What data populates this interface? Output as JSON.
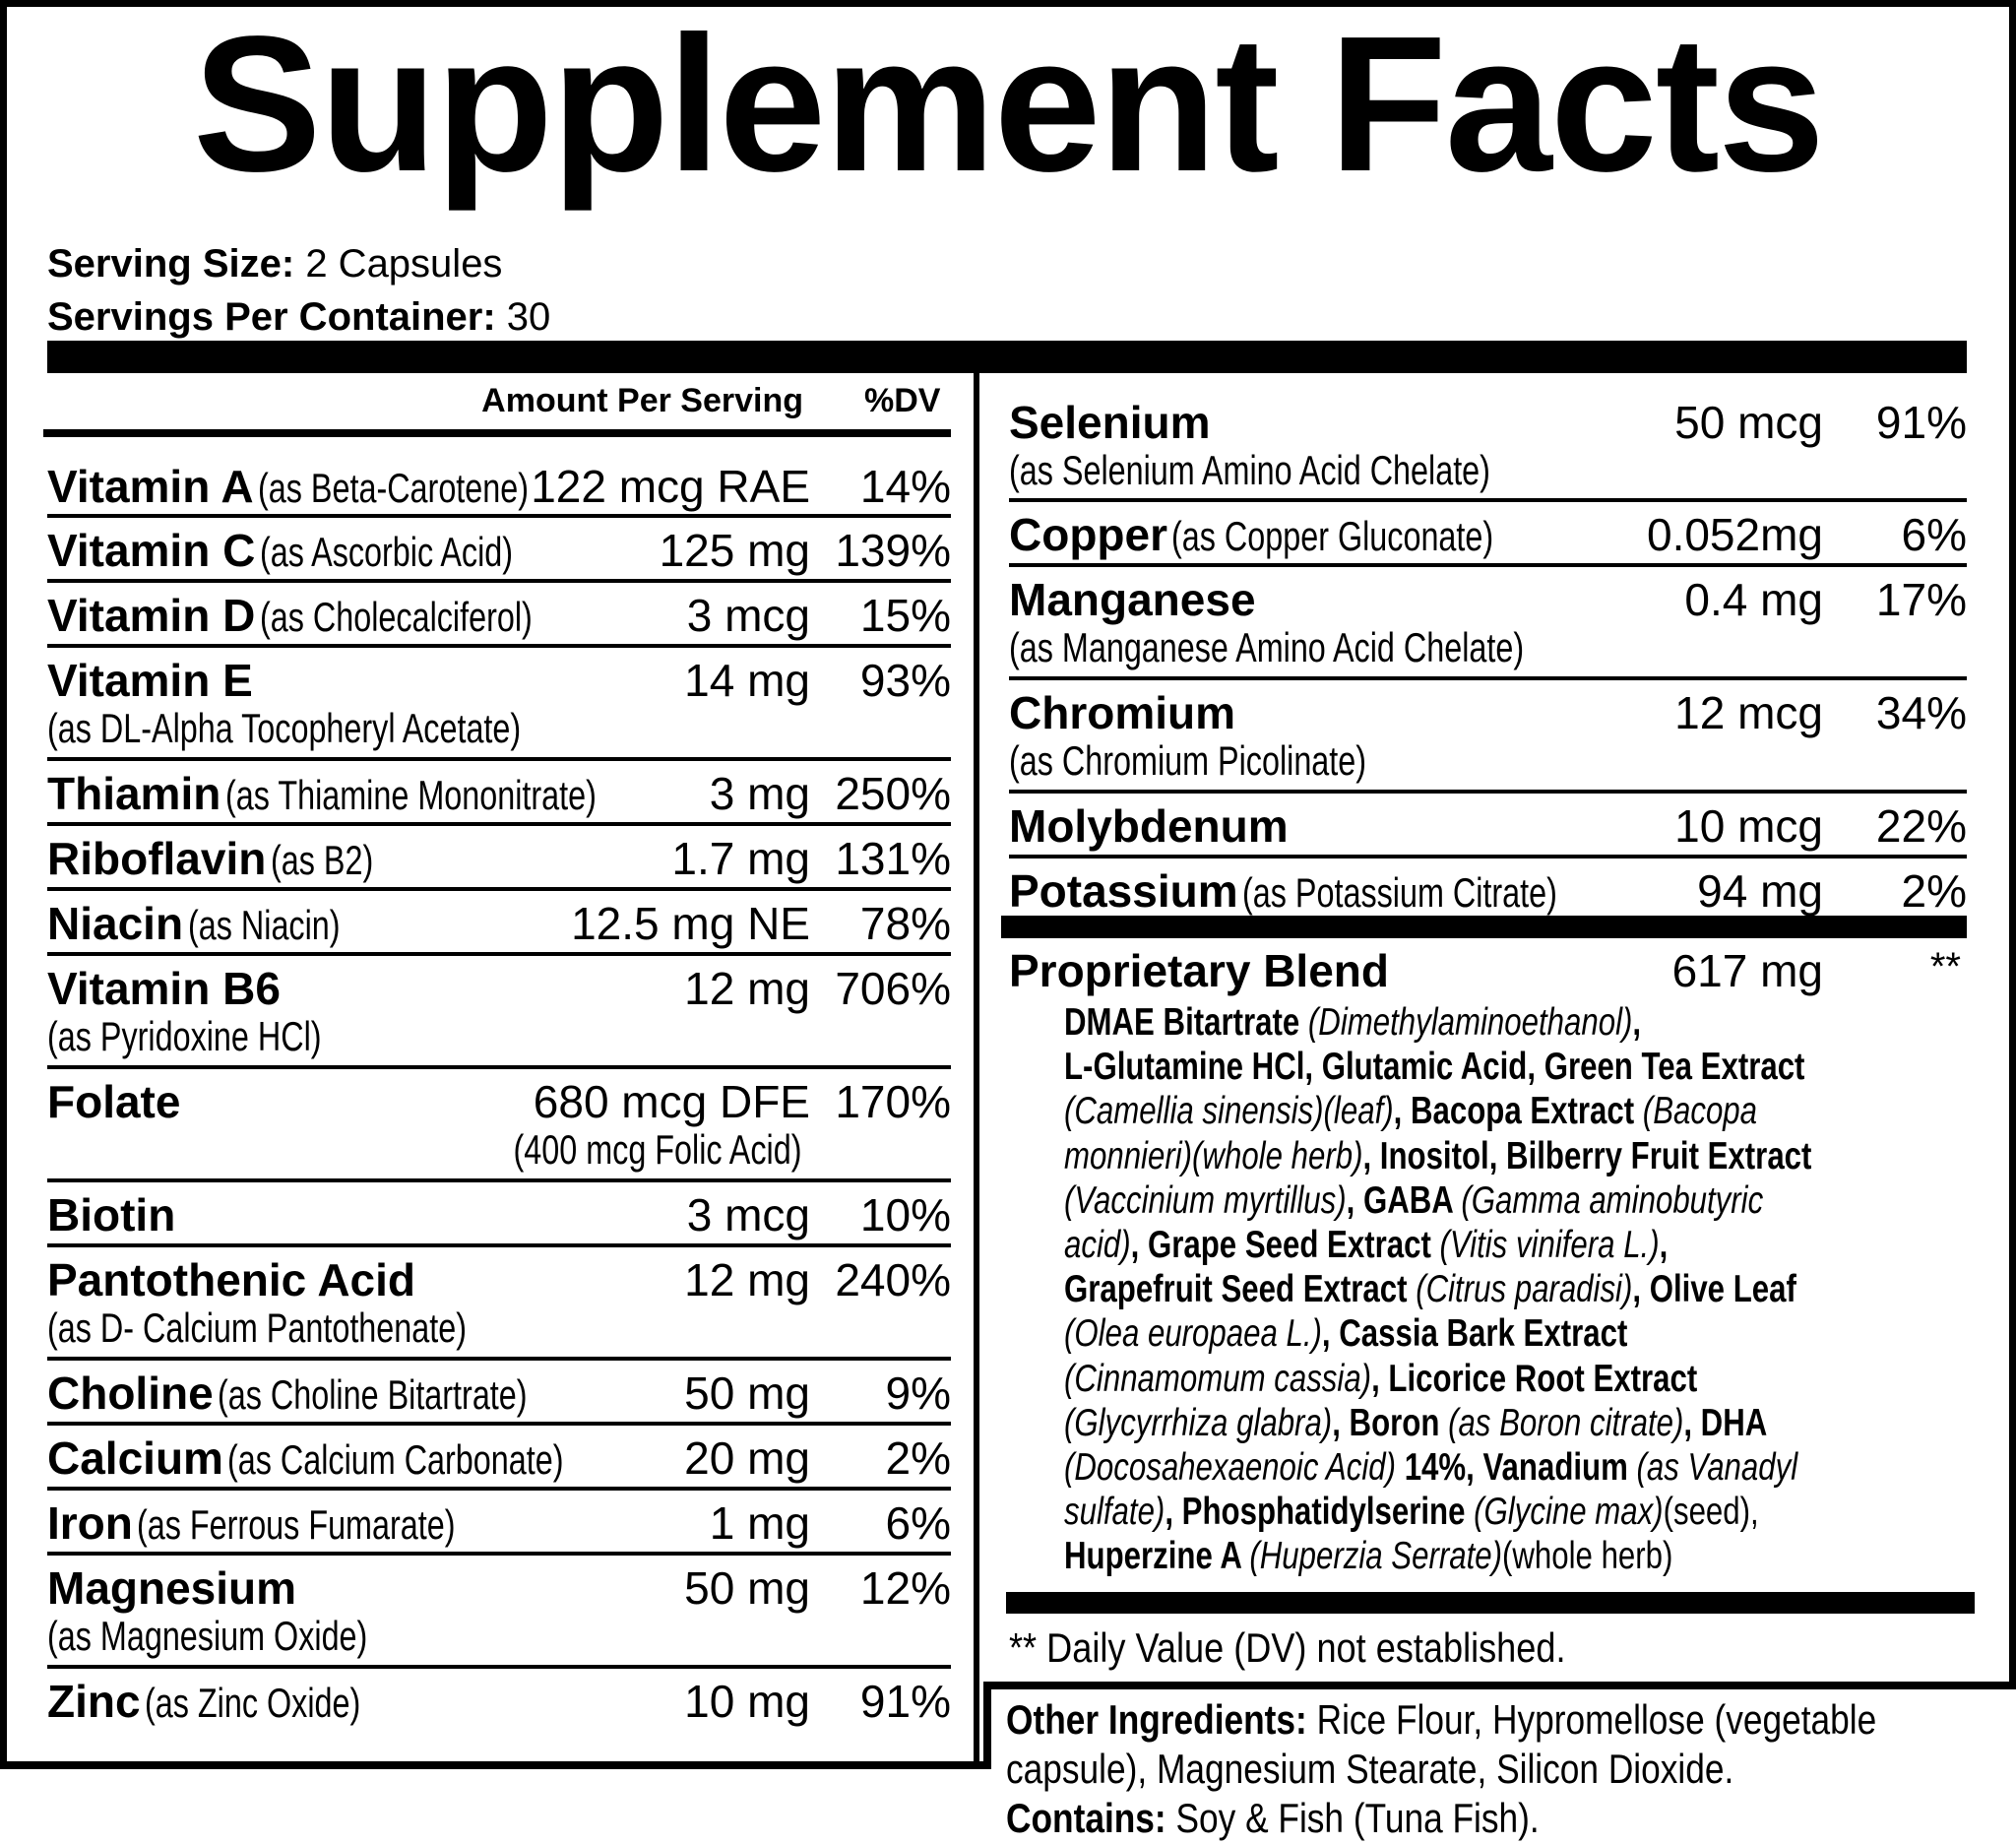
{
  "title": "Supplement Facts",
  "serving": {
    "size_label": "Serving Size:",
    "size_value": " 2 Capsules",
    "per_container_label": "Servings Per Container:",
    "per_container_value": " 30"
  },
  "header": {
    "amount": "Amount Per Serving",
    "dv": "%DV"
  },
  "left": {
    "rows": [
      {
        "name": "Vitamin A",
        "form": "(as Beta-Carotene)",
        "form_line": 1,
        "amount": "122 mcg RAE",
        "dv": "14%"
      },
      {
        "name": "Vitamin C",
        "form": "(as Ascorbic Acid)",
        "form_line": 1,
        "amount": "125 mg",
        "dv": "139%"
      },
      {
        "name": "Vitamin D",
        "form": "(as Cholecalciferol)",
        "form_line": 1,
        "amount": "3 mcg",
        "dv": "15%"
      },
      {
        "name": "Vitamin E",
        "form": "(as DL-Alpha Tocopheryl Acetate)",
        "form_line": 2,
        "amount": "14 mg",
        "dv": "93%"
      },
      {
        "name": "Thiamin",
        "form": "(as Thiamine Mononitrate)",
        "form_line": 1,
        "amount": "3 mg",
        "dv": "250%"
      },
      {
        "name": "Riboflavin",
        "form": "(as B2)",
        "form_line": 1,
        "amount": "1.7 mg",
        "dv": "131%"
      },
      {
        "name": "Niacin",
        "form": "(as Niacin)",
        "form_line": 1,
        "amount": "12.5 mg NE",
        "dv": "78%"
      },
      {
        "name": "Vitamin B6",
        "form": "(as Pyridoxine HCl)",
        "form_line": 2,
        "amount": "12 mg",
        "dv": "706%"
      },
      {
        "name": "Folate",
        "form": "",
        "form_line": 1,
        "amount": "680 mcg DFE",
        "amount_note": "(400 mcg Folic Acid)",
        "dv": "170%"
      },
      {
        "name": "Biotin",
        "form": "",
        "form_line": 1,
        "amount": "3 mcg",
        "dv": "10%"
      },
      {
        "name": "Pantothenic Acid",
        "form": "(as D- Calcium Pantothenate)",
        "form_line": 2,
        "amount": "12 mg",
        "dv": "240%"
      },
      {
        "name": "Choline",
        "form": "(as Choline Bitartrate)",
        "form_line": 1,
        "amount": "50 mg",
        "dv": "9%"
      },
      {
        "name": "Calcium",
        "form": "(as Calcium Carbonate)",
        "form_line": 1,
        "amount": "20 mg",
        "dv": "2%"
      },
      {
        "name": "Iron",
        "form": "(as Ferrous Fumarate)",
        "form_line": 1,
        "amount": "1 mg",
        "dv": "6%"
      },
      {
        "name": "Magnesium",
        "form": "(as Magnesium Oxide)",
        "form_line": 2,
        "amount": "50 mg",
        "dv": "12%"
      },
      {
        "name": "Zinc",
        "form": "(as Zinc Oxide)",
        "form_line": 1,
        "amount": "10 mg",
        "dv": "91%"
      }
    ]
  },
  "right": {
    "rows": [
      {
        "name": "Selenium",
        "form": "(as Selenium Amino Acid Chelate)",
        "form_line": 2,
        "amount": "50 mcg",
        "dv": "91%"
      },
      {
        "name": "Copper",
        "form": "(as Copper Gluconate)",
        "form_line": 1,
        "amount": "0.052mg",
        "dv": "6%"
      },
      {
        "name": "Manganese",
        "form": "(as Manganese Amino Acid Chelate)",
        "form_line": 2,
        "amount": "0.4 mg",
        "dv": "17%"
      },
      {
        "name": "Chromium",
        "form": "(as Chromium Picolinate)",
        "form_line": 2,
        "amount": "12 mcg",
        "dv": "34%"
      },
      {
        "name": "Molybdenum",
        "form": "",
        "form_line": 1,
        "amount": "10 mcg",
        "dv": "22%"
      },
      {
        "name": "Potassium",
        "form": "(as Potassium Citrate)",
        "form_line": 1,
        "amount": "94 mg",
        "dv": "2%"
      }
    ]
  },
  "blend": {
    "name": "Proprietary Blend",
    "amount": "617 mg",
    "dv": "**",
    "lines": [
      [
        {
          "t": "DMAE Bitartrate ",
          "s": "b"
        },
        {
          "t": "(Dimethylaminoethanol)",
          "s": "i"
        },
        {
          "t": ",",
          "s": "b"
        }
      ],
      [
        {
          "t": "L-Glutamine HCl, Glutamic Acid, Green Tea Extract",
          "s": "b"
        }
      ],
      [
        {
          "t": "(Camellia sinensis)(leaf)",
          "s": "i"
        },
        {
          "t": ", Bacopa Extract ",
          "s": "b"
        },
        {
          "t": "(Bacopa",
          "s": "i"
        }
      ],
      [
        {
          "t": "monnieri)(whole herb)",
          "s": "i"
        },
        {
          "t": ", Inositol, Bilberry Fruit Extract",
          "s": "b"
        }
      ],
      [
        {
          "t": "(Vaccinium myrtillus)",
          "s": "i"
        },
        {
          "t": ", GABA ",
          "s": "b"
        },
        {
          "t": "(Gamma aminobutyric",
          "s": "i"
        }
      ],
      [
        {
          "t": "acid)",
          "s": "i"
        },
        {
          "t": ", Grape Seed Extract ",
          "s": "b"
        },
        {
          "t": "(Vitis vinifera L.)",
          "s": "i"
        },
        {
          "t": ",",
          "s": "b"
        }
      ],
      [
        {
          "t": "Grapefruit Seed Extract ",
          "s": "b"
        },
        {
          "t": "(Citrus paradisi)",
          "s": "i"
        },
        {
          "t": ", Olive Leaf",
          "s": "b"
        }
      ],
      [
        {
          "t": "(Olea europaea L.)",
          "s": "i"
        },
        {
          "t": ", Cassia Bark Extract",
          "s": "b"
        }
      ],
      [
        {
          "t": "(Cinnamomum cassia)",
          "s": "i"
        },
        {
          "t": ", Licorice Root Extract",
          "s": "b"
        }
      ],
      [
        {
          "t": "(Glycyrrhiza glabra)",
          "s": "i"
        },
        {
          "t": ", Boron ",
          "s": "b"
        },
        {
          "t": "(as Boron citrate)",
          "s": "i"
        },
        {
          "t": ", DHA",
          "s": "b"
        }
      ],
      [
        {
          "t": "(Docosahexaenoic Acid) ",
          "s": "i"
        },
        {
          "t": "14%, Vanadium ",
          "s": "b"
        },
        {
          "t": "(as Vanadyl",
          "s": "i"
        }
      ],
      [
        {
          "t": "sulfate)",
          "s": "i"
        },
        {
          "t": ", Phosphatidylserine ",
          "s": "b"
        },
        {
          "t": "(Glycine max)",
          "s": "i"
        },
        {
          "t": "(seed),",
          "s": "r"
        }
      ],
      [
        {
          "t": "Huperzine A ",
          "s": "b"
        },
        {
          "t": "(Huperzia Serrate)",
          "s": "i"
        },
        {
          "t": "(whole herb)",
          "s": "r"
        }
      ]
    ]
  },
  "footnote": "** Daily Value (DV) not established.",
  "other": {
    "label": "Other Ingredients:",
    "text1": " Rice Flour, Hypromellose (vegetable",
    "text2": "capsule), Magnesium Stearate, Silicon Dioxide.",
    "contains_label": "Contains:",
    "contains_text": " Soy & Fish (Tuna Fish)."
  }
}
